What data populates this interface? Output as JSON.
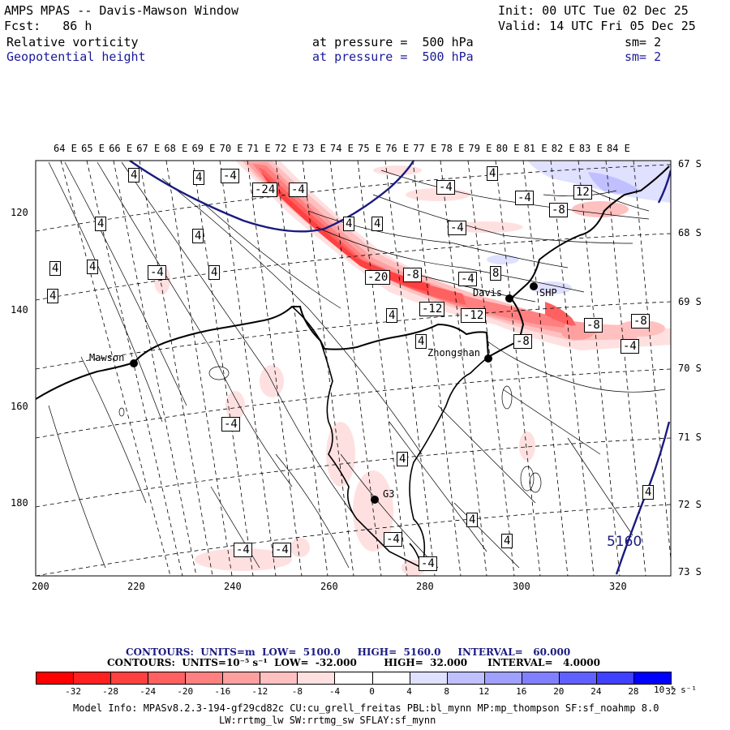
{
  "header": {
    "title": "AMPS MPAS -- Davis-Mawson Window",
    "init": "Init: 00 UTC Tue 02 Dec 25",
    "fcst": "Fcst:   86 h",
    "valid": "Valid: 14 UTC Fri 05 Dec 25",
    "field1": {
      "name": "Relative vorticity",
      "level": "at pressure =  500 hPa",
      "sm": "sm= 2"
    },
    "field2": {
      "name": "Geopotential height",
      "level": "at pressure =  500 hPa",
      "sm": "sm= 2"
    }
  },
  "lon_labels": [
    "64 E",
    "65 E",
    "66 E",
    "67 E",
    "68 E",
    "69 E",
    "70 E",
    "71 E",
    "72 E",
    "73 E",
    "74 E",
    "75 E",
    "76 E",
    "77 E",
    "78 E",
    "79 E",
    "80 E",
    "81 E",
    "82 E",
    "83 E",
    "84 E"
  ],
  "lat_labels": [
    "67 S",
    "68 S",
    "69 S",
    "70 S",
    "71 S",
    "72 S",
    "73 S"
  ],
  "x_ticks": [
    "200",
    "220",
    "240",
    "260",
    "280",
    "300",
    "320"
  ],
  "y_ticks": [
    "120",
    "140",
    "160",
    "180"
  ],
  "stations": {
    "mawson": "Mawson",
    "davis": "Davis",
    "zhongshan": "Zhongshan",
    "g3": "G3",
    "shp": "SHP"
  },
  "contour_labels": {
    "neg24": "-24",
    "neg20": "-20",
    "neg12": "-12",
    "neg8": "-8",
    "neg4": "-4",
    "pos4": "4",
    "pos8": "8",
    "pos12": "12",
    "height5160": "5160"
  },
  "contours_info": {
    "line1": "CONTOURS:  UNITS=m  LOW=  5100.0     HIGH=  5160.0     INTERVAL=   60.000",
    "line2": "CONTOURS:  UNITS=10⁻⁵ s⁻¹  LOW=  -32.000        HIGH=  32.000      INTERVAL=   4.0000"
  },
  "colorbar": {
    "labels": [
      "-32",
      "-28",
      "-24",
      "-20",
      "-16",
      "-12",
      "-8",
      "-4",
      "0",
      "4",
      "8",
      "12",
      "16",
      "20",
      "24",
      "28",
      "32"
    ],
    "units": "10⁻⁵ s⁻¹",
    "colors": [
      "#ff0000",
      "#ff2020",
      "#ff4040",
      "#ff6060",
      "#ff8080",
      "#ffa0a0",
      "#ffc0c0",
      "#ffe0e0",
      "#ffffff",
      "#ffffff",
      "#e0e0ff",
      "#c0c0ff",
      "#a0a0ff",
      "#8080ff",
      "#6060ff",
      "#4040ff",
      "#0000ff"
    ]
  },
  "model_info": {
    "line1": "Model Info: MPASv8.2.3-194-gf29cd82c CU:cu_grell_freitas PBL:bl_mynn MP:mp_thompson SF:sf_noahmp 8.0",
    "line2": "LW:rrtmg_lw SW:rrtmg_sw SFLAY:sf_mynn"
  }
}
